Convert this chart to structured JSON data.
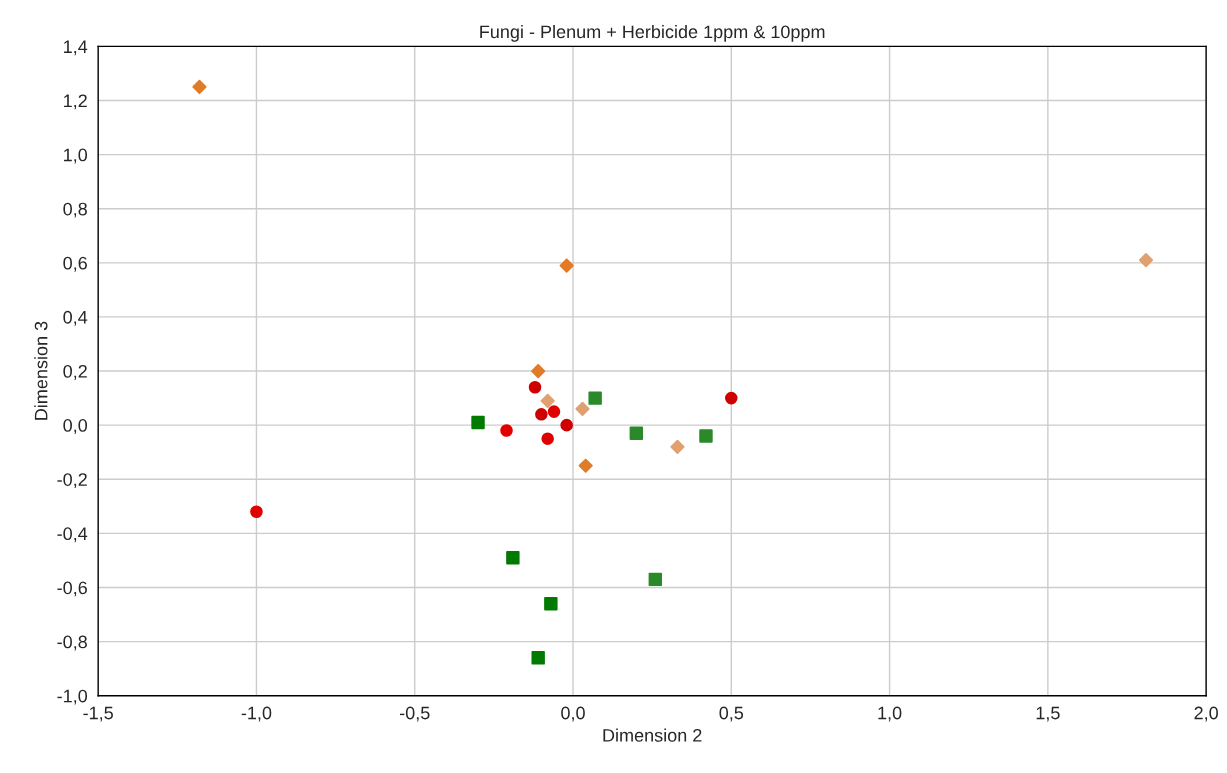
{
  "chart_data": {
    "type": "scatter",
    "title": "Fungi - Plenum + Herbicide 1ppm & 10ppm",
    "xlabel": "Dimension 2",
    "ylabel": "Dimension 3",
    "xlim": [
      -1.5,
      2.0
    ],
    "ylim": [
      -1.0,
      1.4
    ],
    "xticks": [
      {
        "value": -1.5,
        "label": "-1,5"
      },
      {
        "value": -1.0,
        "label": "-1,0"
      },
      {
        "value": -0.5,
        "label": "-0,5"
      },
      {
        "value": 0.0,
        "label": "0,0"
      },
      {
        "value": 0.5,
        "label": "0,5"
      },
      {
        "value": 1.0,
        "label": "1,0"
      },
      {
        "value": 1.5,
        "label": "1,5"
      },
      {
        "value": 2.0,
        "label": "2,0"
      }
    ],
    "yticks": [
      {
        "value": -1.0,
        "label": "-1,0"
      },
      {
        "value": -0.8,
        "label": "-0,8"
      },
      {
        "value": -0.6,
        "label": "-0,6"
      },
      {
        "value": -0.4,
        "label": "-0,4"
      },
      {
        "value": -0.2,
        "label": "-0,2"
      },
      {
        "value": 0.0,
        "label": "0,0"
      },
      {
        "value": 0.2,
        "label": "0,2"
      },
      {
        "value": 0.4,
        "label": "0,4"
      },
      {
        "value": 0.6,
        "label": "0,6"
      },
      {
        "value": 0.8,
        "label": "0,8"
      },
      {
        "value": 1.0,
        "label": "1,0"
      },
      {
        "value": 1.2,
        "label": "1,2"
      },
      {
        "value": 1.4,
        "label": "1,4"
      }
    ],
    "grid": true,
    "legend": false,
    "series": [
      {
        "color": "#e07b28",
        "marker": "diamond",
        "x": [
          -1.18,
          -0.02,
          -0.11,
          0.04
        ],
        "values": [
          1.25,
          0.59,
          0.2,
          -0.15
        ]
      },
      {
        "color": "#e0a070",
        "marker": "diamond",
        "x": [
          1.81,
          -0.08,
          0.03,
          0.33
        ],
        "values": [
          0.61,
          0.09,
          0.06,
          -0.08
        ]
      },
      {
        "color": "#e00000",
        "marker": "circle",
        "x": [
          -1.0,
          -0.21,
          -0.08,
          -0.06
        ],
        "values": [
          -0.32,
          -0.02,
          -0.05,
          0.05
        ]
      },
      {
        "color": "#d00000",
        "marker": "circle",
        "x": [
          -0.12,
          -0.1,
          -0.02,
          0.5
        ],
        "values": [
          0.14,
          0.04,
          0.0,
          0.1
        ]
      },
      {
        "color": "#007a00",
        "marker": "square",
        "x": [
          -0.3,
          -0.19,
          -0.07,
          -0.11
        ],
        "values": [
          0.01,
          -0.49,
          -0.66,
          -0.86
        ]
      },
      {
        "color": "#2a8a2a",
        "marker": "square",
        "x": [
          0.07,
          0.2,
          0.42,
          0.26
        ],
        "values": [
          0.1,
          -0.03,
          -0.04,
          -0.57
        ]
      }
    ]
  }
}
